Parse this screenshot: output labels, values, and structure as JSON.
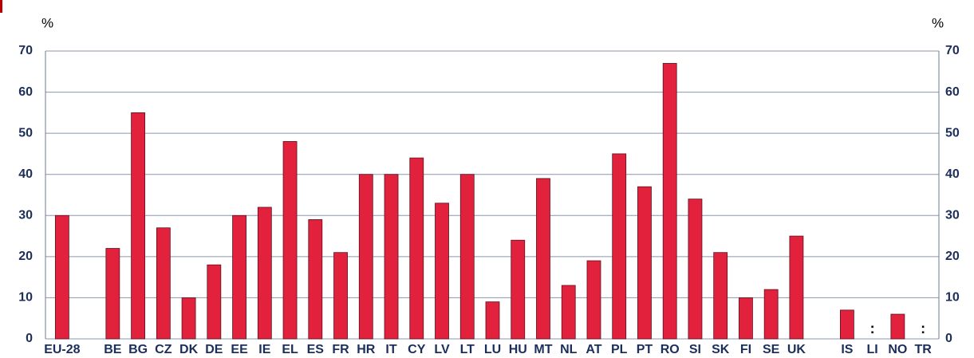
{
  "chart_data": {
    "type": "bar",
    "y_label": "%",
    "y2_label": "%",
    "categories": [
      "EU-28",
      null,
      "BE",
      "BG",
      "CZ",
      "DK",
      "DE",
      "EE",
      "IE",
      "EL",
      "ES",
      "FR",
      "HR",
      "IT",
      "CY",
      "LV",
      "LT",
      "LU",
      "HU",
      "MT",
      "NL",
      "AT",
      "PL",
      "PT",
      "RO",
      "SI",
      "SK",
      "FI",
      "SE",
      "UK",
      null,
      "IS",
      "LI",
      "NO",
      "TR"
    ],
    "values": [
      30,
      null,
      22,
      55,
      27,
      10,
      18,
      30,
      32,
      48,
      29,
      21,
      40,
      40,
      44,
      33,
      40,
      9,
      24,
      39,
      13,
      19,
      45,
      37,
      67,
      34,
      21,
      10,
      12,
      25,
      null,
      7,
      null,
      6,
      null
    ],
    "value_labels": [
      null,
      null,
      null,
      null,
      null,
      null,
      null,
      null,
      null,
      null,
      null,
      null,
      null,
      null,
      null,
      null,
      null,
      null,
      null,
      null,
      null,
      null,
      null,
      null,
      null,
      null,
      null,
      null,
      null,
      null,
      null,
      null,
      ":",
      null,
      ":"
    ],
    "color": "#e2213d",
    "ylim": [
      0,
      70
    ],
    "yticks": [
      0,
      10,
      20,
      30,
      40,
      50,
      60,
      70
    ],
    "y2lim": [
      0,
      70
    ],
    "y2ticks": [
      0,
      10,
      20,
      30,
      40,
      50,
      60,
      70
    ],
    "grid": true
  }
}
